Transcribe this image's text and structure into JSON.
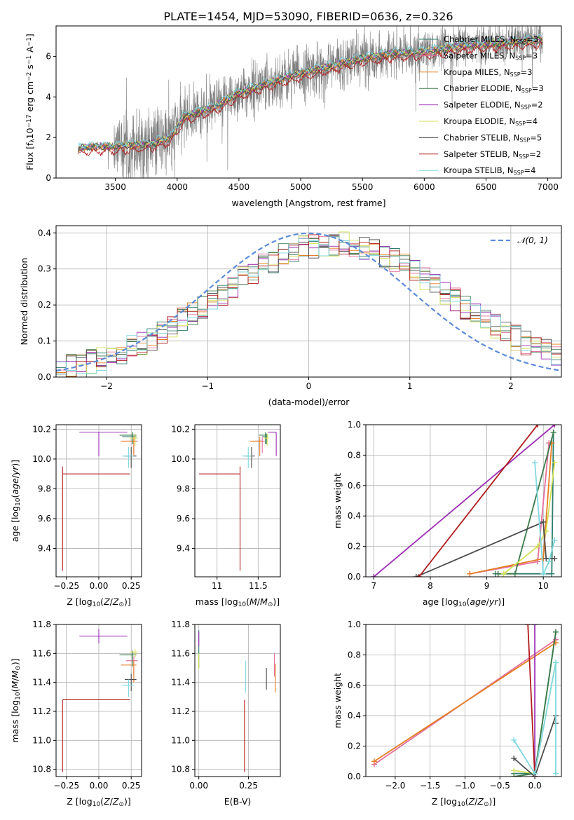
{
  "figure": {
    "title": "PLATE=1454, MJD=53090, FIBERID=0636, z=0.326"
  },
  "colors": {
    "grid": "#b0b0b0",
    "axis": "#000000",
    "spectrum": "#7f7f7f",
    "normal": "#5b8bd9"
  },
  "models": [
    {
      "key": "chabrier_miles",
      "label": "Chabrier MILES, N",
      "sub": "SSP",
      "eq": "=3",
      "color": "#2e7d6b"
    },
    {
      "key": "salpeter_miles",
      "label": "Salpeter MILES, N",
      "sub": "SSP",
      "eq": "=3",
      "color": "#e36f9e"
    },
    {
      "key": "kroupa_miles",
      "label": "Kroupa MILES, N",
      "sub": "SSP",
      "eq": "=3",
      "color": "#e67e22"
    },
    {
      "key": "chabrier_elodie",
      "label": "Chabrier ELODIE, N",
      "sub": "SSP",
      "eq": "=3",
      "color": "#3c7a4a"
    },
    {
      "key": "salpeter_elodie",
      "label": "Salpeter ELODIE, N",
      "sub": "SSP",
      "eq": "=2",
      "color": "#9b2db3"
    },
    {
      "key": "kroupa_elodie",
      "label": "Kroupa ELODIE, N",
      "sub": "SSP",
      "eq": "=4",
      "color": "#d4e157"
    },
    {
      "key": "chabrier_stelib",
      "label": "Chabrier STELIB, N",
      "sub": "SSP",
      "eq": "=5",
      "color": "#4d4d4d"
    },
    {
      "key": "salpeter_stelib",
      "label": "Salpeter STELIB, N",
      "sub": "SSP",
      "eq": "=2",
      "color": "#b01c1c"
    },
    {
      "key": "kroupa_stelib",
      "label": "Kroupa STELIB, N",
      "sub": "SSP",
      "eq": "=4",
      "color": "#7fd8e0"
    }
  ],
  "chart_data": [
    {
      "id": "spectrum",
      "type": "line",
      "title": "PLATE=1454, MJD=53090, FIBERID=0636, z=0.326",
      "xlabel": "wavelength [Angstrom, rest frame]",
      "ylabel_parts": [
        "Flux [f",
        "λ",
        "10",
        "−17",
        " erg cm",
        "−2",
        " s",
        "−1",
        " A",
        "−1",
        "]"
      ],
      "xlim": [
        3020,
        7110
      ],
      "ylim": [
        0,
        7.5
      ],
      "xticks": [
        3500,
        4000,
        4500,
        5000,
        5500,
        6000,
        6500,
        7000
      ],
      "yticks": [
        0,
        2,
        4,
        6
      ],
      "legend": "top-right",
      "model_continuum": {
        "x": [
          3200,
          3300,
          3500,
          3600,
          3700,
          3800,
          3900,
          3950,
          4050,
          4150,
          4300,
          4500,
          4700,
          4900,
          5100,
          5300,
          5500,
          5700,
          5900,
          6100,
          6300,
          6500,
          6700,
          6900
        ],
        "y": [
          1.45,
          1.55,
          1.55,
          1.6,
          1.65,
          1.7,
          1.9,
          2.0,
          3.0,
          3.2,
          3.5,
          4.2,
          4.6,
          5.0,
          5.3,
          5.6,
          5.9,
          6.1,
          6.2,
          6.3,
          6.5,
          6.6,
          6.7,
          6.8
        ]
      },
      "data_range": [
        3200,
        6960
      ]
    },
    {
      "id": "residuals",
      "type": "step",
      "xlabel": "(data-model)/error",
      "ylabel": "Normed distribution",
      "xlim": [
        -2.5,
        2.5
      ],
      "ylim": [
        0,
        0.42
      ],
      "xticks": [
        -2,
        -1,
        0,
        1,
        2
      ],
      "yticks": [
        0.0,
        0.1,
        0.2,
        0.3,
        0.4
      ],
      "legend": "top-right",
      "normal_label": "𝒩(0, 1)",
      "bin_width": 0.1
    },
    {
      "id": "age_vs_Z",
      "type": "errorbar",
      "xlabel": "Z [log10(Z/Z⊙)]",
      "ylabel": "age  [log10(age/yr)]",
      "xlim": [
        -0.33,
        0.33
      ],
      "ylim": [
        9.21,
        10.23
      ],
      "xticks": [
        -0.25,
        0.0,
        0.25
      ],
      "xticklabels": [
        "−0.25",
        "0.00",
        "0.25"
      ],
      "yticks": [
        9.4,
        9.6,
        9.8,
        10.0,
        10.2
      ],
      "points": [
        {
          "m": 0,
          "x": 0.26,
          "y": 10.15,
          "xe": [
            0.08,
            0.03
          ],
          "ye": [
            0.05,
            0.02
          ]
        },
        {
          "m": 1,
          "x": 0.27,
          "y": 10.12,
          "xe": [
            0.06,
            0.03
          ],
          "ye": [
            0.08,
            0.03
          ]
        },
        {
          "m": 2,
          "x": 0.27,
          "y": 10.12,
          "xe": [
            0.1,
            0.02
          ],
          "ye": [
            0.1,
            0.03
          ]
        },
        {
          "m": 3,
          "x": 0.26,
          "y": 10.16,
          "xe": [
            0.1,
            0.03
          ],
          "ye": [
            0.06,
            0.02
          ]
        },
        {
          "m": 4,
          "x": 0.0,
          "y": 10.18,
          "xe": [
            0.15,
            0.22
          ],
          "ye": [
            0.16,
            0.0
          ]
        },
        {
          "m": 5,
          "x": 0.28,
          "y": 10.14,
          "xe": [
            0.04,
            0.02
          ],
          "ye": [
            0.05,
            0.03
          ]
        },
        {
          "m": 6,
          "x": 0.25,
          "y": 10.02,
          "xe": [
            0.05,
            0.04
          ],
          "ye": [
            0.08,
            0.06
          ]
        },
        {
          "m": 7,
          "x": -0.28,
          "y": 9.9,
          "xe": [
            0.0,
            0.52
          ],
          "ye": [
            0.65,
            0.05
          ]
        },
        {
          "m": 8,
          "x": 0.23,
          "y": 10.02,
          "xe": [
            0.05,
            0.04
          ],
          "ye": [
            0.08,
            0.06
          ]
        }
      ]
    },
    {
      "id": "age_vs_mass",
      "type": "errorbar",
      "xlabel": "mass [log10(M/M⊙)]",
      "xlim": [
        10.73,
        11.77
      ],
      "ylim": [
        9.21,
        10.23
      ],
      "xticks": [
        11.0,
        11.5
      ],
      "yticks": [
        9.4,
        9.6,
        9.8,
        10.0,
        10.2
      ],
      "points": [
        {
          "m": 0,
          "x": 11.6,
          "y": 10.15,
          "xe": [
            0.05,
            0.02
          ],
          "ye": [
            0.05,
            0.02
          ]
        },
        {
          "m": 1,
          "x": 11.55,
          "y": 10.12,
          "xe": [
            0.1,
            0.03
          ],
          "ye": [
            0.08,
            0.03
          ]
        },
        {
          "m": 2,
          "x": 11.52,
          "y": 10.12,
          "xe": [
            0.12,
            0.03
          ],
          "ye": [
            0.1,
            0.03
          ]
        },
        {
          "m": 3,
          "x": 11.59,
          "y": 10.16,
          "xe": [
            0.08,
            0.03
          ],
          "ye": [
            0.06,
            0.02
          ]
        },
        {
          "m": 4,
          "x": 11.72,
          "y": 10.18,
          "xe": [
            0.1,
            0.0
          ],
          "ye": [
            0.16,
            0.0
          ]
        },
        {
          "m": 5,
          "x": 11.61,
          "y": 10.14,
          "xe": [
            0.04,
            0.02
          ],
          "ye": [
            0.05,
            0.03
          ]
        },
        {
          "m": 6,
          "x": 11.42,
          "y": 10.02,
          "xe": [
            0.08,
            0.04
          ],
          "ye": [
            0.08,
            0.06
          ]
        },
        {
          "m": 7,
          "x": 11.28,
          "y": 9.9,
          "xe": [
            0.5,
            0.0
          ],
          "ye": [
            0.65,
            0.05
          ]
        },
        {
          "m": 8,
          "x": 11.38,
          "y": 10.02,
          "xe": [
            0.08,
            0.04
          ],
          "ye": [
            0.08,
            0.06
          ]
        }
      ]
    },
    {
      "id": "weight_vs_age",
      "type": "line",
      "xlabel": "age  [log10(age/yr)]",
      "ylabel": "mass weight",
      "xlim": [
        6.86,
        10.32
      ],
      "ylim": [
        0,
        1.0
      ],
      "xticks": [
        7,
        8,
        9,
        10
      ],
      "yticks": [
        0.0,
        0.2,
        0.4,
        0.6,
        0.8,
        1.0
      ],
      "series": [
        {
          "m": 0,
          "x": [
            9.15,
            10.15,
            10.18
          ],
          "y": [
            0.02,
            0.02,
            0.95
          ]
        },
        {
          "m": 1,
          "x": [
            8.7,
            9.9,
            10.1
          ],
          "y": [
            0.02,
            0.1,
            0.88
          ]
        },
        {
          "m": 2,
          "x": [
            8.7,
            10.0,
            10.15
          ],
          "y": [
            0.02,
            0.12,
            0.88
          ]
        },
        {
          "m": 3,
          "x": [
            9.2,
            9.5,
            10.18
          ],
          "y": [
            0.02,
            0.02,
            0.95
          ]
        },
        {
          "m": 4,
          "x": [
            7.0,
            10.2
          ],
          "y": [
            0.0,
            1.0
          ]
        },
        {
          "m": 5,
          "x": [
            9.3,
            9.9,
            10.05,
            10.2
          ],
          "y": [
            0.02,
            0.2,
            0.3,
            0.75
          ]
        },
        {
          "m": 6,
          "x": [
            7.75,
            10.0,
            10.05,
            10.2
          ],
          "y": [
            0.0,
            0.36,
            0.12,
            0.12
          ]
        },
        {
          "m": 7,
          "x": [
            7.8,
            9.9
          ],
          "y": [
            0.0,
            1.0
          ]
        },
        {
          "m": 8,
          "x": [
            9.85,
            10.0,
            10.1,
            10.2
          ],
          "y": [
            0.75,
            0.02,
            0.1,
            0.24
          ]
        }
      ]
    },
    {
      "id": "mass_vs_Z",
      "type": "errorbar",
      "xlabel": "Z [log10(Z/Z⊙)]",
      "ylabel": "mass [log10(M/M⊙)]",
      "xlim": [
        -0.33,
        0.33
      ],
      "ylim": [
        10.75,
        11.8
      ],
      "xticks": [
        -0.25,
        0.0,
        0.25
      ],
      "xticklabels": [
        "−0.25",
        "0.00",
        "0.25"
      ],
      "yticks": [
        10.8,
        11.0,
        11.2,
        11.4,
        11.6,
        11.8
      ],
      "points": [
        {
          "m": 0,
          "x": 0.26,
          "y": 11.59,
          "xe": [
            0.08,
            0.03
          ],
          "ye": [
            0.05,
            0.02
          ]
        },
        {
          "m": 1,
          "x": 0.27,
          "y": 11.55,
          "xe": [
            0.06,
            0.03
          ],
          "ye": [
            0.1,
            0.03
          ]
        },
        {
          "m": 2,
          "x": 0.27,
          "y": 11.52,
          "xe": [
            0.1,
            0.02
          ],
          "ye": [
            0.12,
            0.03
          ]
        },
        {
          "m": 3,
          "x": 0.26,
          "y": 11.59,
          "xe": [
            0.1,
            0.03
          ],
          "ye": [
            0.08,
            0.03
          ]
        },
        {
          "m": 4,
          "x": 0.0,
          "y": 11.72,
          "xe": [
            0.15,
            0.22
          ],
          "ye": [
            0.05,
            0.05
          ]
        },
        {
          "m": 5,
          "x": 0.28,
          "y": 11.61,
          "xe": [
            0.04,
            0.02
          ],
          "ye": [
            0.04,
            0.02
          ]
        },
        {
          "m": 6,
          "x": 0.25,
          "y": 11.42,
          "xe": [
            0.05,
            0.04
          ],
          "ye": [
            0.08,
            0.04
          ]
        },
        {
          "m": 7,
          "x": -0.28,
          "y": 11.28,
          "xe": [
            0.0,
            0.52
          ],
          "ye": [
            0.5,
            0.0
          ]
        },
        {
          "m": 8,
          "x": 0.23,
          "y": 11.38,
          "xe": [
            0.05,
            0.04
          ],
          "ye": [
            0.08,
            0.04
          ]
        }
      ]
    },
    {
      "id": "mass_vs_ebv",
      "type": "errorbar",
      "xlabel": "E(B-V)",
      "xlim": [
        -0.02,
        0.41
      ],
      "ylim": [
        10.75,
        11.8
      ],
      "xticks": [
        0.0,
        0.25
      ],
      "xticklabels": [
        "0.00",
        "0.25"
      ],
      "yticks": [
        10.8,
        11.0,
        11.2,
        11.4,
        11.6,
        11.8
      ],
      "points": [
        {
          "m": 0,
          "x": 0.0,
          "y": 11.68,
          "xe": [
            0,
            0
          ],
          "ye": [
            0.08,
            0.08
          ]
        },
        {
          "m": 1,
          "x": 0.38,
          "y": 11.52,
          "xe": [
            0,
            0
          ],
          "ye": [
            0.08,
            0.08
          ]
        },
        {
          "m": 2,
          "x": 0.385,
          "y": 11.45,
          "xe": [
            0,
            0
          ],
          "ye": [
            0.12,
            0.08
          ]
        },
        {
          "m": 3,
          "x": 0.0,
          "y": 11.55,
          "xe": [
            0,
            0
          ],
          "ye": [
            0.05,
            0.05
          ]
        },
        {
          "m": 4,
          "x": 0.0,
          "y": 11.7,
          "xe": [
            0,
            0
          ],
          "ye": [
            0.05,
            0.05
          ]
        },
        {
          "m": 5,
          "x": 0.0,
          "y": 11.55,
          "xe": [
            0,
            0
          ],
          "ye": [
            0.06,
            0.05
          ]
        },
        {
          "m": 6,
          "x": 0.34,
          "y": 11.45,
          "xe": [
            0,
            0
          ],
          "ye": [
            0.1,
            0.05
          ]
        },
        {
          "m": 7,
          "x": 0.23,
          "y": 11.0,
          "xe": [
            0,
            0
          ],
          "ye": [
            0.22,
            0.28
          ]
        },
        {
          "m": 8,
          "x": 0.235,
          "y": 11.45,
          "xe": [
            0,
            0
          ],
          "ye": [
            0.12,
            0.1
          ]
        }
      ]
    },
    {
      "id": "weight_vs_Z",
      "type": "line",
      "xlabel": "Z [log10(Z/Z⊙)]",
      "ylabel": "mass weight",
      "xlim": [
        -2.42,
        0.38
      ],
      "ylim": [
        0,
        1.0
      ],
      "xticks": [
        -2.0,
        -1.5,
        -1.0,
        -0.5,
        0.0
      ],
      "xticklabels": [
        "−2.0",
        "−1.5",
        "−1.0",
        "−0.5",
        "0.0"
      ],
      "yticks": [
        0.0,
        0.2,
        0.4,
        0.6,
        0.8,
        1.0
      ],
      "series": [
        {
          "m": 0,
          "x": [
            -0.3,
            0.0,
            0.3
          ],
          "y": [
            0.02,
            0.02,
            0.95
          ]
        },
        {
          "m": 1,
          "x": [
            -2.3,
            0.3
          ],
          "y": [
            0.08,
            0.9
          ]
        },
        {
          "m": 2,
          "x": [
            -2.3,
            0.3
          ],
          "y": [
            0.1,
            0.88
          ]
        },
        {
          "m": 3,
          "x": [
            -0.3,
            0.0,
            0.3
          ],
          "y": [
            0.0,
            0.02,
            0.95
          ]
        },
        {
          "m": 4,
          "x": [
            0.0,
            0.0
          ],
          "y": [
            0.0,
            1.0
          ]
        },
        {
          "m": 5,
          "x": [
            -0.3,
            0.0,
            0.3
          ],
          "y": [
            0.04,
            0.02,
            0.75
          ]
        },
        {
          "m": 6,
          "x": [
            -0.3,
            0.0,
            0.3,
            0.3
          ],
          "y": [
            0.12,
            0.0,
            0.4,
            0.35
          ]
        },
        {
          "m": 7,
          "x": [
            -0.1,
            0.0
          ],
          "y": [
            1.0,
            0.0
          ]
        },
        {
          "m": 8,
          "x": [
            -0.3,
            0.0,
            0.3,
            0.3
          ],
          "y": [
            0.24,
            0.02,
            0.75,
            0.02
          ]
        }
      ]
    }
  ]
}
